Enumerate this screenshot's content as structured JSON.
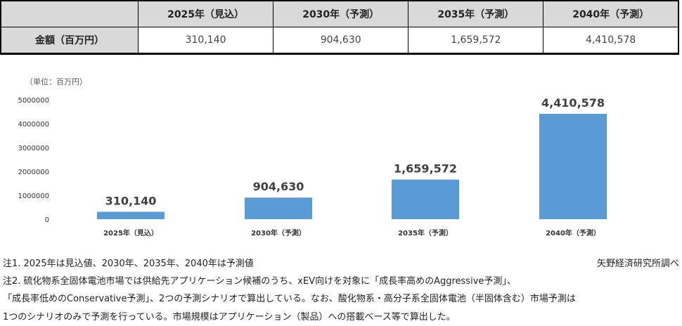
{
  "table": {
    "headers": [
      "",
      "2025年（見込）",
      "2030年（予測）",
      "2035年（予測）",
      "2040年（予測）"
    ],
    "row_label": "金額（百万円）",
    "values": [
      "310,140",
      "904,630",
      "1,659,572",
      "4,410,578"
    ]
  },
  "chart_data": {
    "type": "bar",
    "unit_label": "（単位：百万円）",
    "categories": [
      "2025年（見込）",
      "2030年（予測）",
      "2035年（予測）",
      "2040年（予測）"
    ],
    "values": [
      310140,
      904630,
      1659572,
      4410578
    ],
    "data_labels": [
      "310,140",
      "904,630",
      "1,659,572",
      "4,410,578"
    ],
    "yticks": [
      "0",
      "1000000",
      "2000000",
      "3000000",
      "4000000",
      "5000000"
    ],
    "ylim": [
      0,
      5000000
    ],
    "grid": false,
    "bar_color": "#5b9bd5"
  },
  "notes": {
    "note1": "注1. 2025年は見込値、2030年、2035年、2040年は予測値",
    "source": "矢野経済研究所調べ",
    "note2_line1": "注2. 硫化物系全固体電池市場では供給先アプリケーション候補のうち、xEV向けを対象に「成長率高めのAggressive予測」、",
    "note2_line2": "「成長率低めのConservative予測」、2つの予測シナリオで算出している。なお、酸化物系・高分子系全固体電池（半固体含む）市場予測は",
    "note2_line3": "1つのシナリオのみで予測を行っている。市場規模はアプリケーション（製品）への搭載ベース等で算出した。"
  }
}
